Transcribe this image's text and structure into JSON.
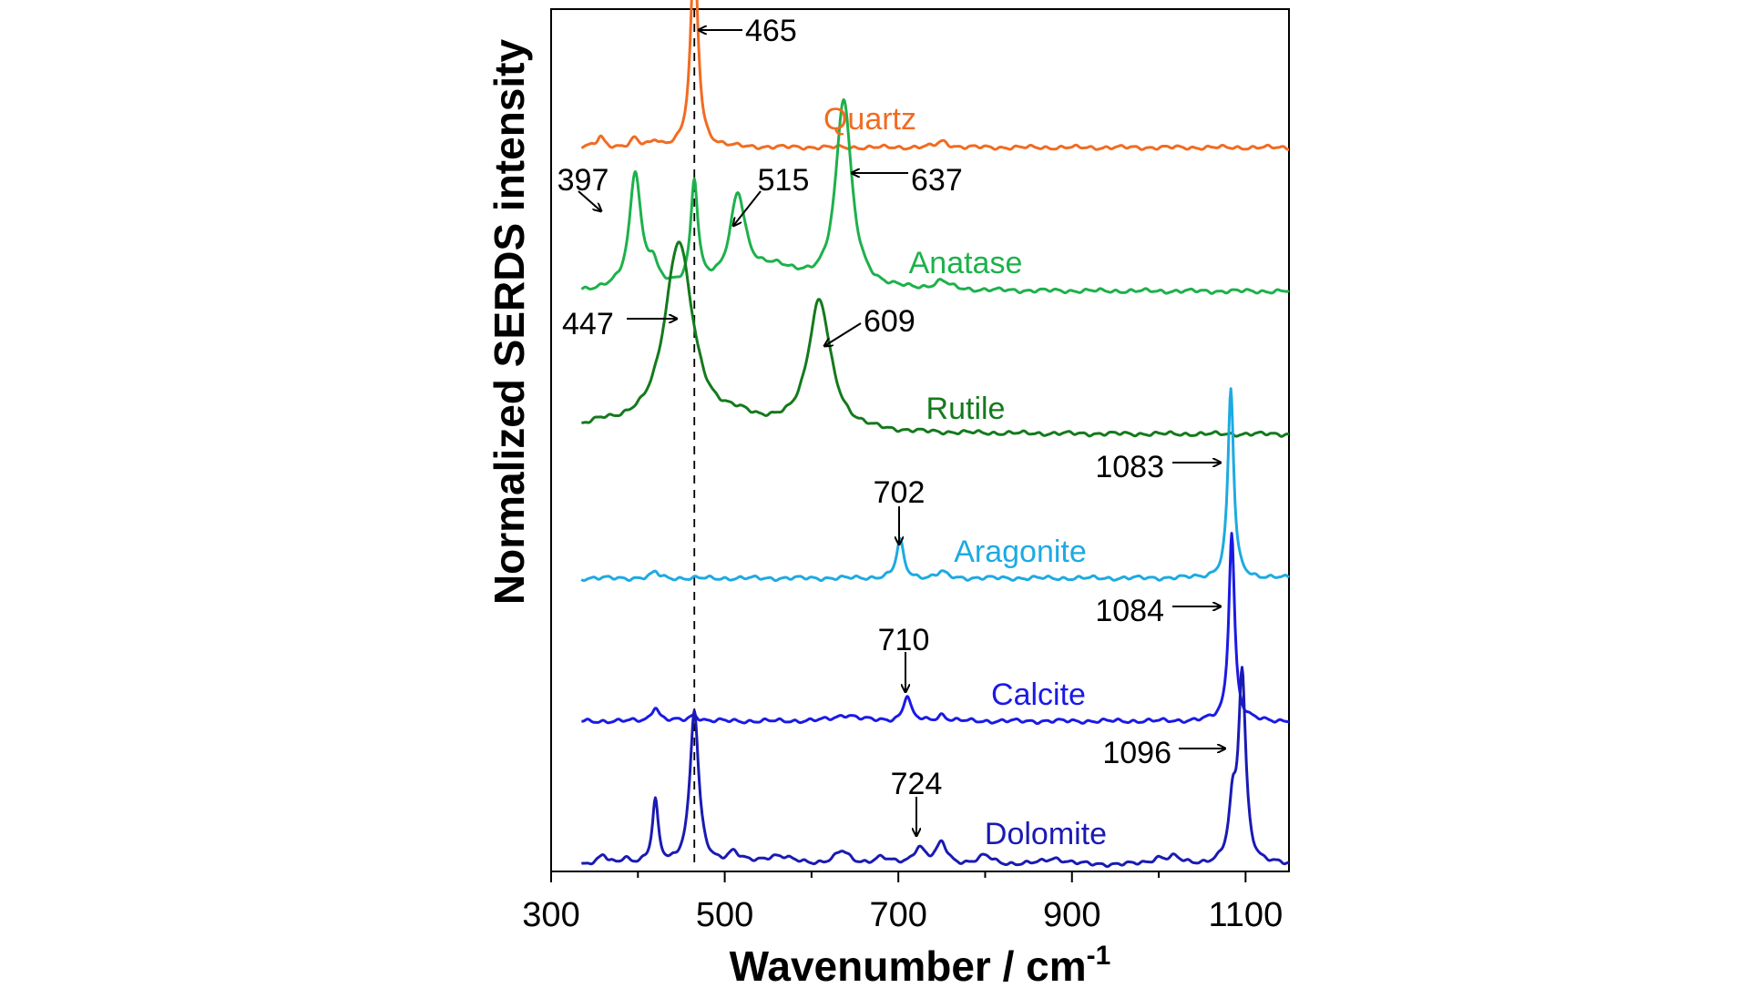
{
  "chart_data": {
    "type": "line",
    "title": "",
    "xlabel": "Wavenumber / cm",
    "xlabel_superscript": "-1",
    "ylabel": "Normalized SERDS intensity",
    "xlim": [
      300,
      1150
    ],
    "x_ticks": [
      300,
      500,
      700,
      900,
      1100
    ],
    "x_tick_labels": [
      "300",
      "500",
      "700",
      "900",
      "1100"
    ],
    "y_ticks_shown": false,
    "grid": false,
    "legend": "none (series labelled in-plot)",
    "reference_line": {
      "x": 465,
      "style": "dashed"
    },
    "x_start": 335,
    "series": [
      {
        "name": "Quartz",
        "color": "#F26B21",
        "baseline_offset": 5,
        "peaks": [
          {
            "x": 357,
            "height": 0.05,
            "width": 5
          },
          {
            "x": 396,
            "height": 0.04,
            "width": 5
          },
          {
            "x": 420,
            "height": 0.03,
            "width": 5
          },
          {
            "x": 465,
            "height": 1.0,
            "width": 5
          },
          {
            "x": 751,
            "height": 0.03,
            "width": 8
          }
        ],
        "annotations": [
          {
            "text": "465",
            "x": 465,
            "arrow": "left"
          }
        ]
      },
      {
        "name": "Anatase",
        "color": "#1DB14B",
        "baseline_offset": 4,
        "peaks": [
          {
            "x": 397,
            "height": 0.56,
            "width": 8
          },
          {
            "x": 417,
            "height": 0.1,
            "width": 6
          },
          {
            "x": 465,
            "height": 0.5,
            "width": 5
          },
          {
            "x": 515,
            "height": 0.43,
            "width": 11
          },
          {
            "x": 560,
            "height": 0.1,
            "width": 30
          },
          {
            "x": 637,
            "height": 0.9,
            "width": 11
          },
          {
            "x": 750,
            "height": 0.04,
            "width": 10
          }
        ],
        "annotations": [
          {
            "text": "397",
            "x": 397,
            "arrow": "down-right"
          },
          {
            "text": "515",
            "x": 515,
            "arrow": "down-left"
          },
          {
            "text": "637",
            "x": 637,
            "arrow": "left"
          }
        ]
      },
      {
        "name": "Rutile",
        "color": "#147A1C",
        "baseline_offset": 3,
        "peaks": [
          {
            "x": 360,
            "height": 0.04,
            "width": 20
          },
          {
            "x": 447,
            "height": 0.9,
            "width": 20
          },
          {
            "x": 520,
            "height": 0.05,
            "width": 25
          },
          {
            "x": 609,
            "height": 0.62,
            "width": 16
          }
        ],
        "annotations": [
          {
            "text": "447",
            "x": 447,
            "arrow": "right"
          },
          {
            "text": "609",
            "x": 609,
            "arrow": "down-left"
          }
        ]
      },
      {
        "name": "Aragonite",
        "color": "#1DAAE2",
        "baseline_offset": 2,
        "peaks": [
          {
            "x": 420,
            "height": 0.03,
            "width": 5
          },
          {
            "x": 702,
            "height": 0.18,
            "width": 5
          },
          {
            "x": 750,
            "height": 0.03,
            "width": 6
          },
          {
            "x": 1083,
            "height": 0.9,
            "width": 4
          }
        ],
        "annotations": [
          {
            "text": "702",
            "x": 702,
            "arrow": "down"
          },
          {
            "text": "1083",
            "x": 1083,
            "arrow": "right"
          }
        ]
      },
      {
        "name": "Calcite",
        "color": "#1A1AE6",
        "baseline_offset": 1,
        "peaks": [
          {
            "x": 420,
            "height": 0.07,
            "width": 5
          },
          {
            "x": 465,
            "height": 0.03,
            "width": 6
          },
          {
            "x": 640,
            "height": 0.03,
            "width": 15
          },
          {
            "x": 710,
            "height": 0.12,
            "width": 5
          },
          {
            "x": 750,
            "height": 0.03,
            "width": 6
          },
          {
            "x": 1084,
            "height": 0.9,
            "width": 4
          }
        ],
        "annotations": [
          {
            "text": "710",
            "x": 710,
            "arrow": "down"
          },
          {
            "text": "1084",
            "x": 1084,
            "arrow": "right"
          }
        ]
      },
      {
        "name": "Dolomite",
        "color": "#1A1AB4",
        "baseline_offset": 0,
        "peaks": [
          {
            "x": 360,
            "height": 0.04,
            "width": 6
          },
          {
            "x": 385,
            "height": 0.03,
            "width": 6
          },
          {
            "x": 420,
            "height": 0.3,
            "width": 4
          },
          {
            "x": 465,
            "height": 0.73,
            "width": 6
          },
          {
            "x": 510,
            "height": 0.05,
            "width": 8
          },
          {
            "x": 560,
            "height": 0.04,
            "width": 20
          },
          {
            "x": 635,
            "height": 0.06,
            "width": 10
          },
          {
            "x": 680,
            "height": 0.03,
            "width": 10
          },
          {
            "x": 724,
            "height": 0.08,
            "width": 8
          },
          {
            "x": 750,
            "height": 0.1,
            "width": 7
          },
          {
            "x": 800,
            "height": 0.04,
            "width": 10
          },
          {
            "x": 880,
            "height": 0.03,
            "width": 15
          },
          {
            "x": 1000,
            "height": 0.03,
            "width": 10
          },
          {
            "x": 1018,
            "height": 0.03,
            "width": 8
          },
          {
            "x": 1085,
            "height": 0.25,
            "width": 5
          },
          {
            "x": 1096,
            "height": 0.9,
            "width": 5
          }
        ],
        "annotations": [
          {
            "text": "724",
            "x": 724,
            "arrow": "down"
          },
          {
            "text": "1096",
            "x": 1096,
            "arrow": "right"
          }
        ]
      }
    ]
  }
}
